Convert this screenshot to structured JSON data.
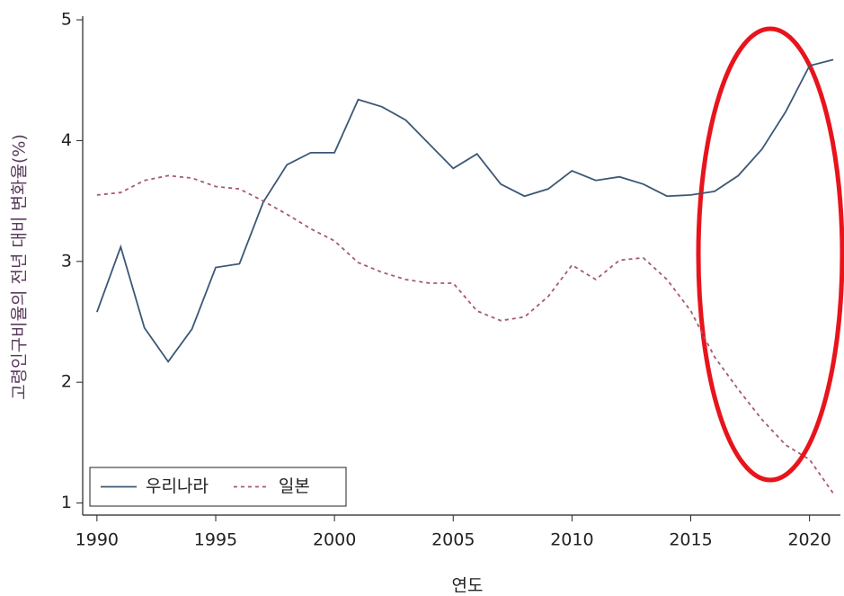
{
  "chart_data": {
    "type": "line",
    "x": [
      1990,
      1991,
      1992,
      1993,
      1994,
      1995,
      1996,
      1997,
      1998,
      1999,
      2000,
      2001,
      2002,
      2003,
      2004,
      2005,
      2006,
      2007,
      2008,
      2009,
      2010,
      2011,
      2012,
      2013,
      2014,
      2015,
      2016,
      2017,
      2018,
      2019,
      2020,
      2021
    ],
    "series": [
      {
        "name": "우리나라",
        "color": "#3b5875",
        "dash": false,
        "values": [
          2.58,
          3.12,
          2.45,
          2.17,
          2.44,
          2.95,
          2.98,
          3.49,
          3.8,
          3.9,
          3.9,
          4.34,
          4.28,
          4.17,
          3.97,
          3.77,
          3.89,
          3.64,
          3.54,
          3.6,
          3.75,
          3.67,
          3.7,
          3.64,
          3.54,
          3.55,
          3.58,
          3.71,
          3.93,
          4.24,
          4.62,
          4.67
        ]
      },
      {
        "name": "일본",
        "color": "#a85a68",
        "dash": true,
        "values": [
          3.55,
          3.57,
          3.67,
          3.71,
          3.69,
          3.62,
          3.6,
          3.5,
          3.39,
          3.27,
          3.17,
          2.99,
          2.91,
          2.85,
          2.82,
          2.82,
          2.59,
          2.51,
          2.54,
          2.71,
          2.97,
          2.85,
          3.01,
          3.03,
          2.85,
          2.59,
          2.21,
          1.94,
          1.69,
          1.48,
          1.36,
          1.08
        ]
      }
    ],
    "xlabel": "연도",
    "ylabel": "고령인구비율의 전년 대비 변화율(%)",
    "xlim": [
      1989.4,
      2021.3
    ],
    "ylim": [
      0.9,
      5.03
    ],
    "xticks": [
      1990,
      1995,
      2000,
      2005,
      2010,
      2015,
      2020
    ],
    "yticks": [
      1,
      2,
      3,
      4,
      5
    ],
    "legend": "lower left"
  }
}
